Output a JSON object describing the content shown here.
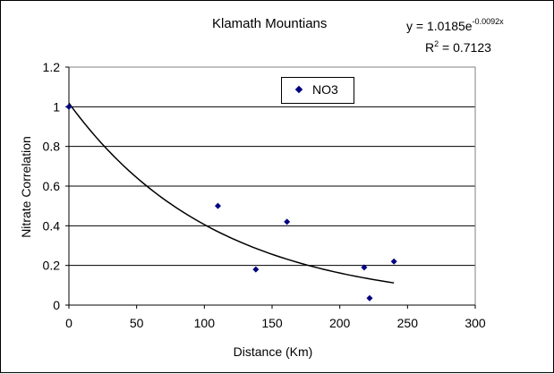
{
  "chart_data": {
    "type": "scatter",
    "title": "Klamath Mountians",
    "xlabel": "Distance (Km)",
    "ylabel": "Nitrate Correlation",
    "xlim": [
      0,
      300
    ],
    "ylim": [
      0,
      1.2
    ],
    "x_ticks": [
      "0",
      "50",
      "100",
      "150",
      "200",
      "250",
      "300"
    ],
    "y_ticks": [
      "0",
      "0.2",
      "0.4",
      "0.6",
      "0.8",
      "1",
      "1.2"
    ],
    "grid": "horizontal",
    "legend_position": "top-center",
    "series": [
      {
        "name": "NO3",
        "color": "#000080",
        "marker": "diamond",
        "points": [
          {
            "x": 0,
            "y": 1.0
          },
          {
            "x": 110,
            "y": 0.5
          },
          {
            "x": 138,
            "y": 0.18
          },
          {
            "x": 161,
            "y": 0.42
          },
          {
            "x": 218,
            "y": 0.19
          },
          {
            "x": 222,
            "y": 0.035
          },
          {
            "x": 240,
            "y": 0.22
          }
        ]
      }
    ],
    "trendline": {
      "type": "exponential",
      "a": 1.0185,
      "b": -0.0092,
      "x_range": [
        0,
        240
      ],
      "equation_base": "y = 1.0185e",
      "equation_exponent": "-0.0092x",
      "r2_prefix": "R",
      "r2_sup": "2",
      "r2_value": " = 0.7123"
    }
  }
}
